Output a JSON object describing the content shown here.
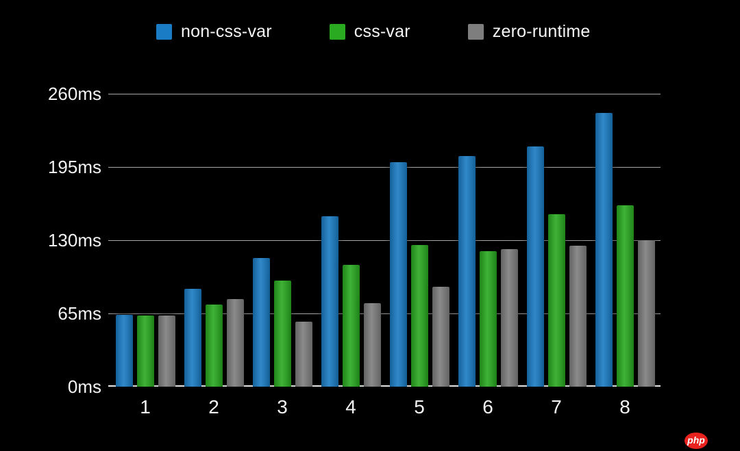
{
  "chart_data": {
    "type": "bar",
    "title": "",
    "xlabel": "",
    "ylabel": "",
    "categories": [
      "1",
      "2",
      "3",
      "4",
      "5",
      "6",
      "7",
      "8"
    ],
    "series": [
      {
        "name": "non-css-var",
        "color": "#1a7cc4",
        "values": [
          64,
          87,
          114,
          151,
          199,
          205,
          213,
          243
        ]
      },
      {
        "name": "css-var",
        "color": "#29aa20",
        "values": [
          63,
          73,
          94,
          108,
          126,
          120,
          153,
          161
        ]
      },
      {
        "name": "zero-runtime",
        "color": "#7e7e7e",
        "values": [
          63,
          78,
          58,
          74,
          89,
          122,
          125,
          130
        ]
      }
    ],
    "ylim": [
      0,
      260
    ],
    "yticks": [
      {
        "value": 0,
        "label": "0ms"
      },
      {
        "value": 65,
        "label": "65ms"
      },
      {
        "value": 130,
        "label": "130ms"
      },
      {
        "value": 195,
        "label": "195ms"
      },
      {
        "value": 260,
        "label": "260ms"
      }
    ],
    "grid": true,
    "legend_position": "top",
    "colors": {
      "background": "#000000",
      "text": "#f2f2f2",
      "gridline": "#a9a9a9",
      "axis_baseline": "#efefef"
    }
  },
  "watermark": {
    "label": "php",
    "bg_color": "#e8231f",
    "text_color": "#ffffff"
  }
}
